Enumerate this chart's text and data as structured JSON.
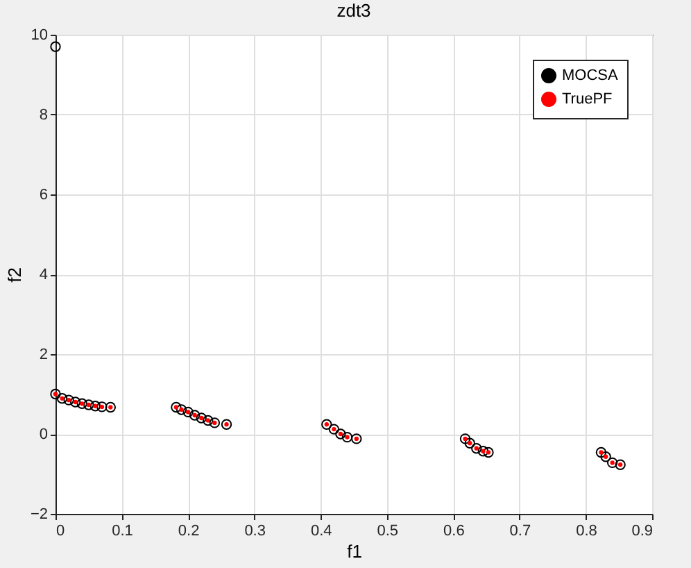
{
  "chart_data": {
    "type": "scatter",
    "title": "zdt3",
    "xlabel": "f1",
    "ylabel": "f2",
    "xlim": [
      0,
      0.9
    ],
    "xticks": [
      0,
      0.1,
      0.2,
      0.3,
      0.4,
      0.5,
      0.6,
      0.7,
      0.8,
      0.9
    ],
    "ylim": [
      -2,
      10
    ],
    "yticks": [
      -2,
      0,
      2,
      4,
      6,
      8,
      10
    ],
    "grid": true,
    "legend": "top right",
    "marker": "circle",
    "series": [
      {
        "name": "MOCSA",
        "color": "#000000",
        "x": [
          0,
          0,
          0.01,
          0.02,
          0.03,
          0.04,
          0.05,
          0.06,
          0.07,
          0.083,
          0.182,
          0.19,
          0.2,
          0.21,
          0.22,
          0.23,
          0.24,
          0.258,
          0.409,
          0.42,
          0.43,
          0.44,
          0.454,
          0.618,
          0.625,
          0.635,
          0.645,
          0.653,
          0.823,
          0.83,
          0.84,
          0.852
        ],
        "values": [
          9.7,
          1,
          0.89,
          0.85,
          0.8,
          0.76,
          0.73,
          0.7,
          0.68,
          0.67,
          0.67,
          0.61,
          0.55,
          0.47,
          0.4,
          0.34,
          0.28,
          0.24,
          0.24,
          0.12,
          0,
          -0.08,
          -0.12,
          -0.12,
          -0.23,
          -0.36,
          -0.43,
          -0.46,
          -0.46,
          -0.57,
          -0.72,
          -0.77
        ]
      },
      {
        "name": "TruePF",
        "color": "#ff0000",
        "x": [
          0,
          0.01,
          0.02,
          0.03,
          0.04,
          0.05,
          0.06,
          0.07,
          0.083,
          0.182,
          0.19,
          0.2,
          0.21,
          0.22,
          0.23,
          0.24,
          0.258,
          0.409,
          0.42,
          0.43,
          0.44,
          0.454,
          0.618,
          0.625,
          0.635,
          0.645,
          0.653,
          0.823,
          0.83,
          0.84,
          0.852
        ],
        "values": [
          1,
          0.89,
          0.85,
          0.8,
          0.76,
          0.73,
          0.7,
          0.68,
          0.67,
          0.67,
          0.61,
          0.55,
          0.47,
          0.4,
          0.34,
          0.28,
          0.24,
          0.24,
          0.12,
          0,
          -0.08,
          -0.12,
          -0.12,
          -0.23,
          -0.36,
          -0.43,
          -0.46,
          -0.46,
          -0.57,
          -0.72,
          -0.77
        ]
      }
    ]
  }
}
